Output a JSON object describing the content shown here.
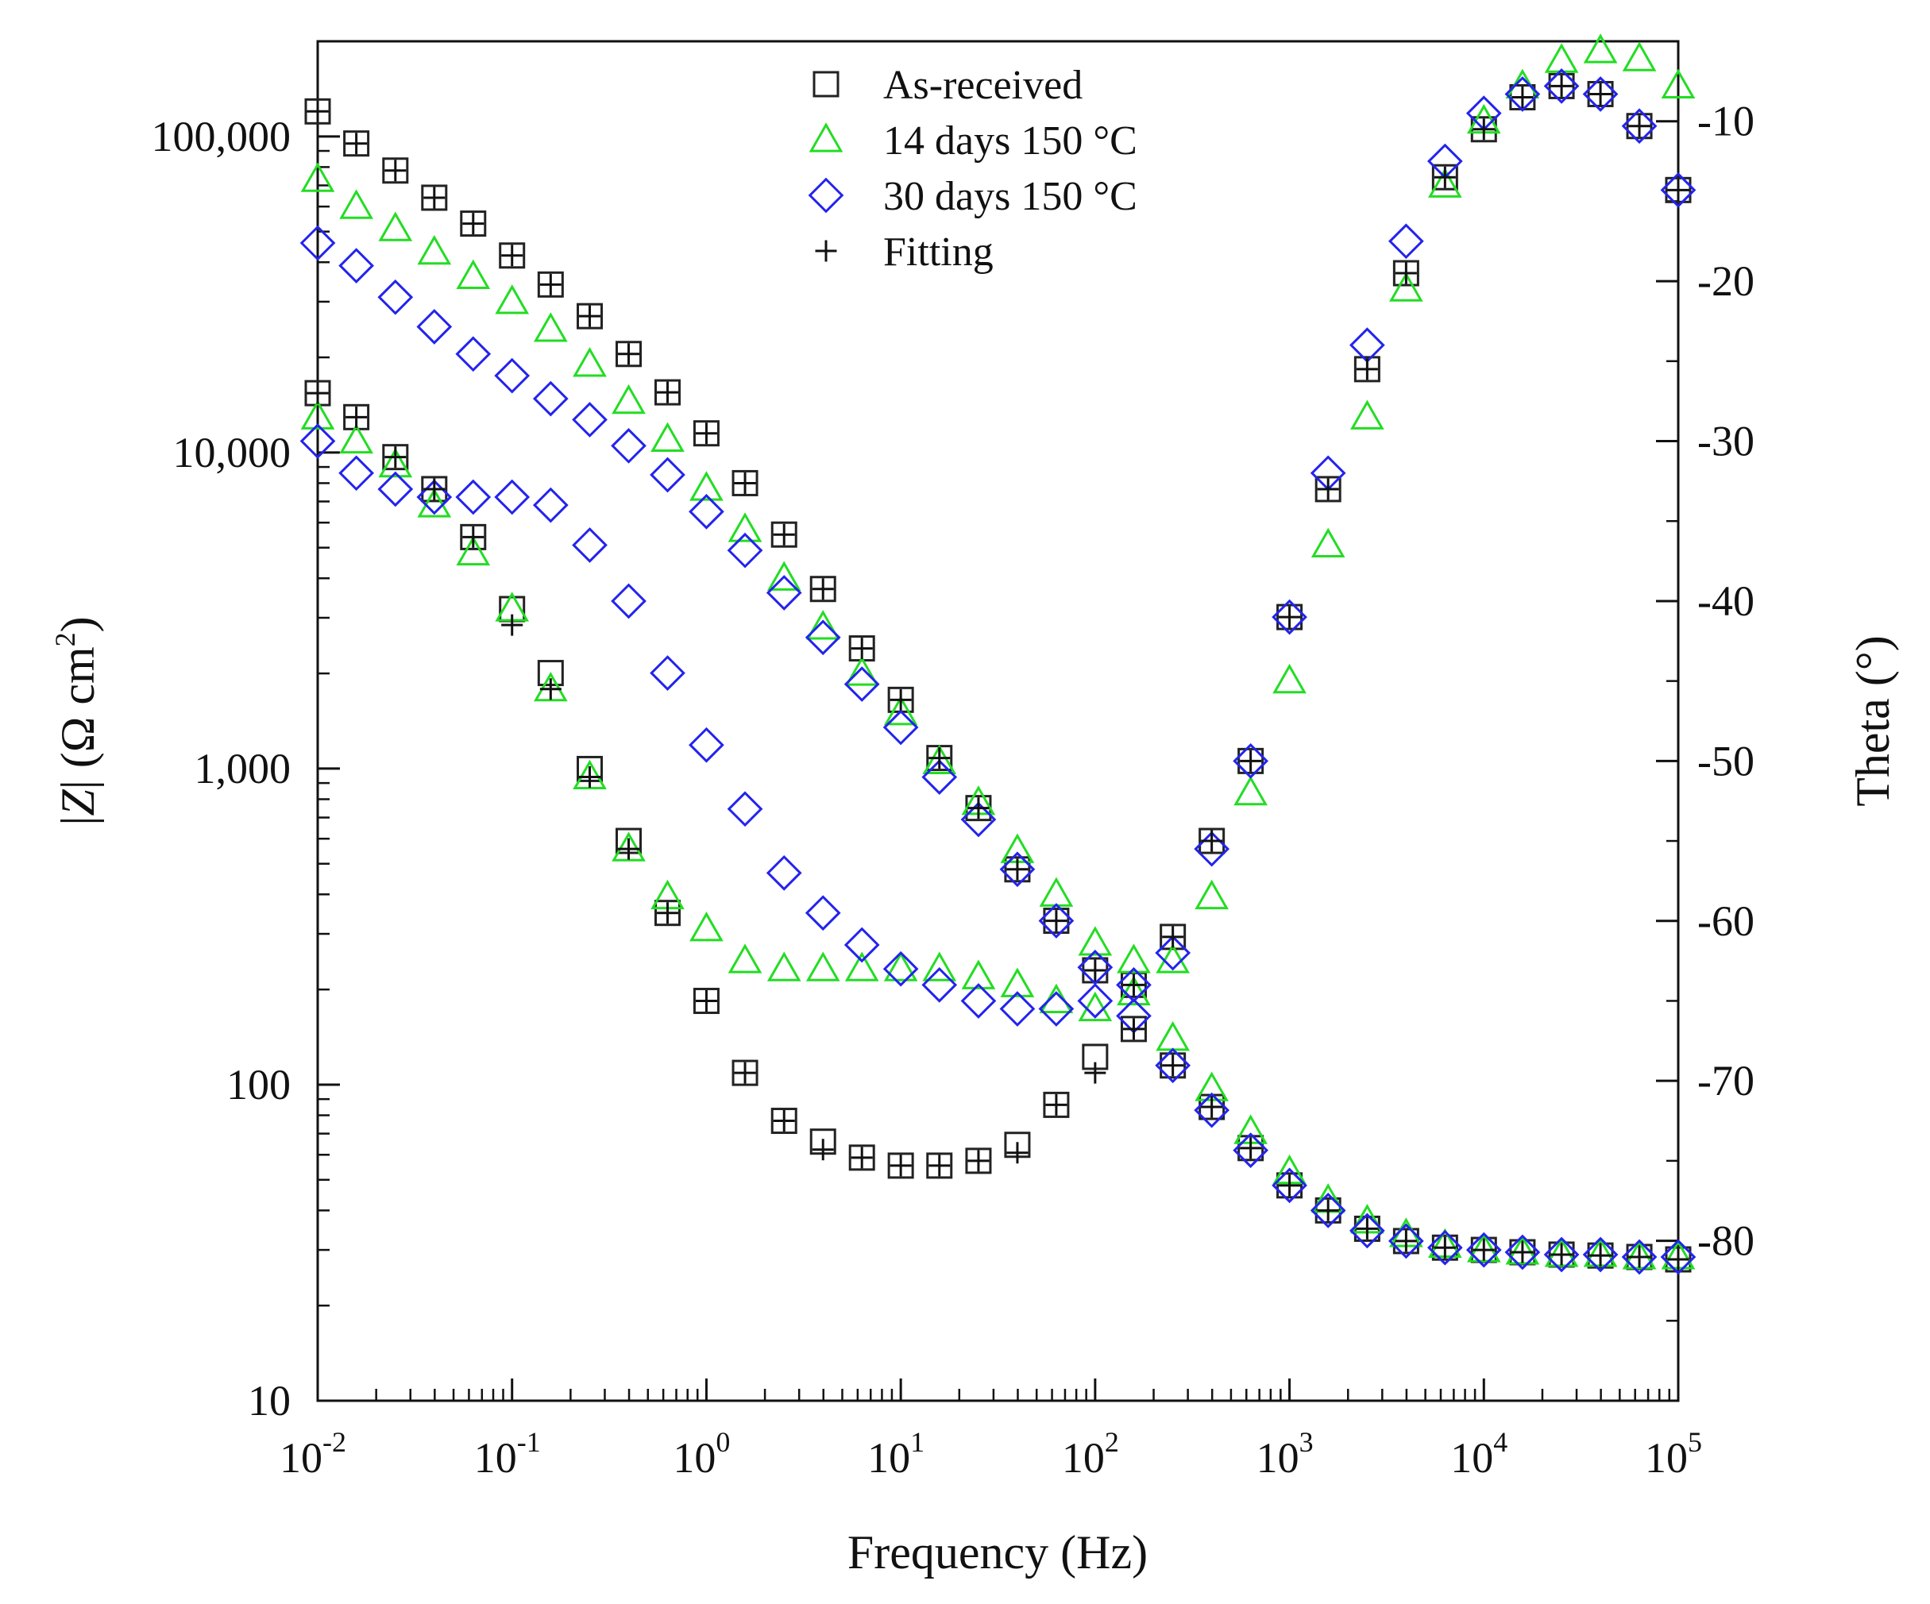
{
  "chart_data": {
    "type": "scatter",
    "xlabel": "Frequency (Hz)",
    "ylabel_left": "|Z| (Ω cm²)",
    "ylabel_left_parts": [
      "|",
      "Z",
      "| (Ω cm",
      "2",
      ")"
    ],
    "ylabel_right": "Theta (°)",
    "xscale": "log",
    "xlim": [
      0.01,
      100000
    ],
    "ylim_left": [
      10,
      200000
    ],
    "ylim_right": [
      -90,
      -5
    ],
    "x_ticks": [
      {
        "value": 0.01,
        "base": "10",
        "exp": "-2"
      },
      {
        "value": 0.1,
        "base": "10",
        "exp": "-1"
      },
      {
        "value": 1,
        "base": "10",
        "exp": "0"
      },
      {
        "value": 10,
        "base": "10",
        "exp": "1"
      },
      {
        "value": 100,
        "base": "10",
        "exp": "2"
      },
      {
        "value": 1000,
        "base": "10",
        "exp": "3"
      },
      {
        "value": 10000,
        "base": "10",
        "exp": "4"
      },
      {
        "value": 100000,
        "base": "10",
        "exp": "5"
      }
    ],
    "y_left_ticks": [
      {
        "value": 10,
        "label": "10"
      },
      {
        "value": 100,
        "label": "100"
      },
      {
        "value": 1000,
        "label": "1,000"
      },
      {
        "value": 10000,
        "label": "10,000"
      },
      {
        "value": 100000,
        "label": "100,000"
      }
    ],
    "y_right_ticks": [
      {
        "value": -10,
        "label": "-10"
      },
      {
        "value": -20,
        "label": "-20"
      },
      {
        "value": -30,
        "label": "-30"
      },
      {
        "value": -40,
        "label": "-40"
      },
      {
        "value": -50,
        "label": "-50"
      },
      {
        "value": -60,
        "label": "-60"
      },
      {
        "value": -70,
        "label": "-70"
      },
      {
        "value": -80,
        "label": "-80"
      }
    ],
    "legend": [
      {
        "label": "As-received",
        "marker": "square",
        "color": "#222222"
      },
      {
        "label": "14 days 150 °C",
        "marker": "triangle",
        "color": "#22dd22"
      },
      {
        "label": "30 days 150 °C",
        "marker": "diamond",
        "color": "#2323ee"
      },
      {
        "label": "Fitting",
        "marker": "plus",
        "color": "#111111"
      }
    ],
    "legend_position": "top-center",
    "frequencies": [
      0.01,
      0.0158,
      0.0251,
      0.0398,
      0.0631,
      0.1,
      0.158,
      0.251,
      0.398,
      0.631,
      1,
      1.58,
      2.51,
      3.98,
      6.31,
      10,
      15.8,
      25.1,
      39.8,
      63.1,
      100,
      158,
      251,
      398,
      631,
      1000,
      1580,
      2510,
      3980,
      6310,
      10000,
      15800,
      25100,
      39800,
      63100,
      100000
    ],
    "series": [
      {
        "name": "As-received",
        "marker": "square",
        "color": "#222222",
        "impedance": [
          120000,
          95000,
          78000,
          64000,
          53000,
          42000,
          34000,
          27000,
          20500,
          15500,
          11500,
          8000,
          5500,
          3700,
          2400,
          1650,
          1080,
          750,
          480,
          330,
          230,
          150,
          115,
          85,
          63,
          48,
          40,
          35,
          32,
          30.5,
          30,
          29.5,
          29,
          28.8,
          28.5,
          28
        ],
        "theta": [
          -27,
          -28.5,
          -31,
          -33,
          -36,
          -40.5,
          -44.5,
          -50.5,
          -55,
          -59.5,
          -65,
          -69.5,
          -72.5,
          -73.8,
          -74.8,
          -75.3,
          -75.3,
          -75,
          -74,
          -71.5,
          -68.5,
          -64,
          -61,
          -55,
          -50,
          -41,
          -33,
          -25.5,
          -19.5,
          -13.5,
          -10.5,
          -8.5,
          -7.8,
          -8.3,
          -10.3,
          -14.3
        ]
      },
      {
        "name": "14 days 150 °C",
        "marker": "triangle",
        "color": "#22dd22",
        "impedance": [
          73000,
          60000,
          51000,
          43000,
          36000,
          30000,
          24500,
          19000,
          14500,
          11000,
          7700,
          5700,
          4000,
          2800,
          2000,
          1500,
          1050,
          780,
          550,
          400,
          280,
          195,
          140,
          97,
          71,
          53,
          43,
          37,
          33.5,
          31,
          30,
          29.5,
          29,
          29,
          28.5,
          28.5
        ],
        "theta": [
          -28.5,
          -30,
          -31.5,
          -34,
          -37,
          -40.5,
          -45.5,
          -51,
          -55.5,
          -58.5,
          -60.5,
          -62.5,
          -63,
          -63,
          -63,
          -63,
          -63,
          -63.5,
          -64,
          -65,
          -65.5,
          -62.5,
          -62.5,
          -58.5,
          -52,
          -45,
          -36.5,
          -28.5,
          -20.5,
          -14,
          -10,
          -7.8,
          -6.2,
          -5.6,
          -6.1,
          -7.8
        ]
      },
      {
        "name": "30 days 150 °C",
        "marker": "diamond",
        "color": "#2323ee",
        "impedance": [
          46000,
          39000,
          31000,
          25000,
          20500,
          17500,
          14800,
          12700,
          10500,
          8500,
          6500,
          4900,
          3600,
          2600,
          1850,
          1350,
          940,
          690,
          480,
          330,
          235,
          165,
          115,
          83,
          62,
          48,
          40,
          34.5,
          32,
          30.5,
          30,
          29.5,
          29,
          29,
          28.5,
          28.5
        ],
        "theta": [
          -30,
          -32,
          -33,
          -33.5,
          -33.5,
          -33.5,
          -34,
          -36.5,
          -40,
          -44.5,
          -49,
          -53,
          -57,
          -59.5,
          -61.5,
          -63,
          -64,
          -65,
          -65.5,
          -65.5,
          -65,
          -64,
          -62,
          -55.5,
          -50,
          -41,
          -32,
          -24,
          -17.5,
          -12.5,
          -9.5,
          -8.3,
          -7.8,
          -8.3,
          -10.3,
          -14.3
        ]
      },
      {
        "name": "Fitting",
        "marker": "plus",
        "color": "#111111",
        "impedance": [
          120000,
          95000,
          78000,
          64000,
          53000,
          42000,
          34000,
          27000,
          20500,
          15500,
          11500,
          8000,
          5500,
          3700,
          2400,
          1650,
          1080,
          750,
          480,
          330,
          230,
          150,
          115,
          85,
          63,
          48,
          40,
          35,
          32,
          30.5,
          30,
          29.5,
          29,
          28.8,
          28.5,
          28
        ],
        "theta": [
          -27,
          -28.5,
          -31,
          -33,
          -36,
          -41.5,
          -45.5,
          -51,
          -55.5,
          -59.5,
          -65,
          -69.5,
          -72.5,
          -74.3,
          -74.8,
          -75.3,
          -75.3,
          -75,
          -74.5,
          -71.5,
          -69.5,
          -64,
          -61,
          -55,
          -50,
          -41,
          -33,
          -25.5,
          -19.5,
          -13.5,
          -10.5,
          -8.5,
          -7.8,
          -8.3,
          -10.3,
          -14.3
        ]
      }
    ]
  }
}
